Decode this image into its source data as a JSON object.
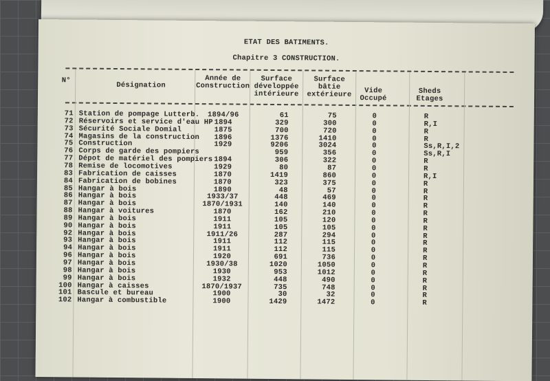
{
  "header": {
    "title": "ETAT DES BATIMENTS.",
    "subtitle": "Chapitre 3  CONSTRUCTION."
  },
  "columns": {
    "no": "N°",
    "designation": "Désignation",
    "year": "Année de Construction",
    "surface_dev": "Surface développée intérieure",
    "surface_batie": "Surface bâtie extérieure",
    "vide": "Vide Occupé",
    "sheds": "Sheds Etages"
  },
  "rows": [
    {
      "no": "71",
      "designation": "Station de pompage Lutterb.",
      "year": "1894/96",
      "surface_dev": "61",
      "surface_batie": "75",
      "vide": "0",
      "sheds": "R"
    },
    {
      "no": "72",
      "designation": "Réservoirs et service d'eau HP",
      "year": "1894",
      "surface_dev": "329",
      "surface_batie": "300",
      "vide": "0",
      "sheds": "R,I"
    },
    {
      "no": "73",
      "designation": "Sécurité Sociale Domial",
      "year": "1875",
      "surface_dev": "700",
      "surface_batie": "720",
      "vide": "0",
      "sheds": "R"
    },
    {
      "no": "74",
      "designation": "Magasins de la construction",
      "year": "1896",
      "surface_dev": "1376",
      "surface_batie": "1410",
      "vide": "0",
      "sheds": "R"
    },
    {
      "no": "75",
      "designation": "Construction",
      "year": "1929",
      "surface_dev": "9206",
      "surface_batie": "3024",
      "vide": "0",
      "sheds": "Ss,R,I,2"
    },
    {
      "no": "76",
      "designation": "Corps de garde des pompiers",
      "year": "",
      "surface_dev": "959",
      "surface_batie": "356",
      "vide": "0",
      "sheds": "Ss,R,I"
    },
    {
      "no": "77",
      "designation": "Dépot de matériel des pompiers",
      "year": "1894",
      "surface_dev": "306",
      "surface_batie": "322",
      "vide": "0",
      "sheds": "R"
    },
    {
      "no": "78",
      "designation": "Remise de locomotives",
      "year": "1929",
      "surface_dev": "80",
      "surface_batie": "87",
      "vide": "0",
      "sheds": "R"
    },
    {
      "no": "83",
      "designation": "Fabrication de caisses",
      "year": "1870",
      "surface_dev": "1419",
      "surface_batie": "860",
      "vide": "0",
      "sheds": "R,I"
    },
    {
      "no": "84",
      "designation": "Fabrication de bobines",
      "year": "1870",
      "surface_dev": "323",
      "surface_batie": "375",
      "vide": "0",
      "sheds": "R"
    },
    {
      "no": "85",
      "designation": "Hangar à bois",
      "year": "1890",
      "surface_dev": "48",
      "surface_batie": "57",
      "vide": "0",
      "sheds": "R"
    },
    {
      "no": "86",
      "designation": "Hangar à bois",
      "year": "1933/37",
      "surface_dev": "448",
      "surface_batie": "469",
      "vide": "0",
      "sheds": "R"
    },
    {
      "no": "87",
      "designation": "Hangar à bois",
      "year": "1870/1931",
      "surface_dev": "140",
      "surface_batie": "140",
      "vide": "0",
      "sheds": "R"
    },
    {
      "no": "88",
      "designation": "Hangar à voitures",
      "year": "1870",
      "surface_dev": "162",
      "surface_batie": "210",
      "vide": "0",
      "sheds": "R"
    },
    {
      "no": "89",
      "designation": "Hangar à bois",
      "year": "1911",
      "surface_dev": "105",
      "surface_batie": "120",
      "vide": "0",
      "sheds": "R"
    },
    {
      "no": "90",
      "designation": "Hangar à bois",
      "year": "1911",
      "surface_dev": "105",
      "surface_batie": "105",
      "vide": "0",
      "sheds": "R"
    },
    {
      "no": "92",
      "designation": "Hangar à bois",
      "year": "1911/26",
      "surface_dev": "287",
      "surface_batie": "294",
      "vide": "0",
      "sheds": "R"
    },
    {
      "no": "93",
      "designation": "Hangar à bois",
      "year": "1911",
      "surface_dev": "112",
      "surface_batie": "115",
      "vide": "0",
      "sheds": "R"
    },
    {
      "no": "94",
      "designation": "Hangar à bois",
      "year": "1911",
      "surface_dev": "112",
      "surface_batie": "115",
      "vide": "0",
      "sheds": "R"
    },
    {
      "no": "96",
      "designation": "Hangar à bois",
      "year": "1920",
      "surface_dev": "691",
      "surface_batie": "736",
      "vide": "0",
      "sheds": "R"
    },
    {
      "no": "97",
      "designation": "Hangar à bois",
      "year": "1930/38",
      "surface_dev": "1020",
      "surface_batie": "1050",
      "vide": "0",
      "sheds": "R"
    },
    {
      "no": "98",
      "designation": "Hangar à bois",
      "year": "1930",
      "surface_dev": "953",
      "surface_batie": "1012",
      "vide": "0",
      "sheds": "R"
    },
    {
      "no": "99",
      "designation": "Hangar à bois",
      "year": "1932",
      "surface_dev": "448",
      "surface_batie": "490",
      "vide": "0",
      "sheds": "R"
    },
    {
      "no": "100",
      "designation": "Hangar à caisses",
      "year": "1870/1937",
      "surface_dev": "735",
      "surface_batie": "748",
      "vide": "0",
      "sheds": "R"
    },
    {
      "no": "101",
      "designation": "Bascule et bureau",
      "year": "1900",
      "surface_dev": "30",
      "surface_batie": "32",
      "vide": "0",
      "sheds": "R"
    },
    {
      "no": "102",
      "designation": "Hangar à combustible",
      "year": "1900",
      "surface_dev": "1429",
      "surface_batie": "1472",
      "vide": "0",
      "sheds": "R"
    }
  ]
}
